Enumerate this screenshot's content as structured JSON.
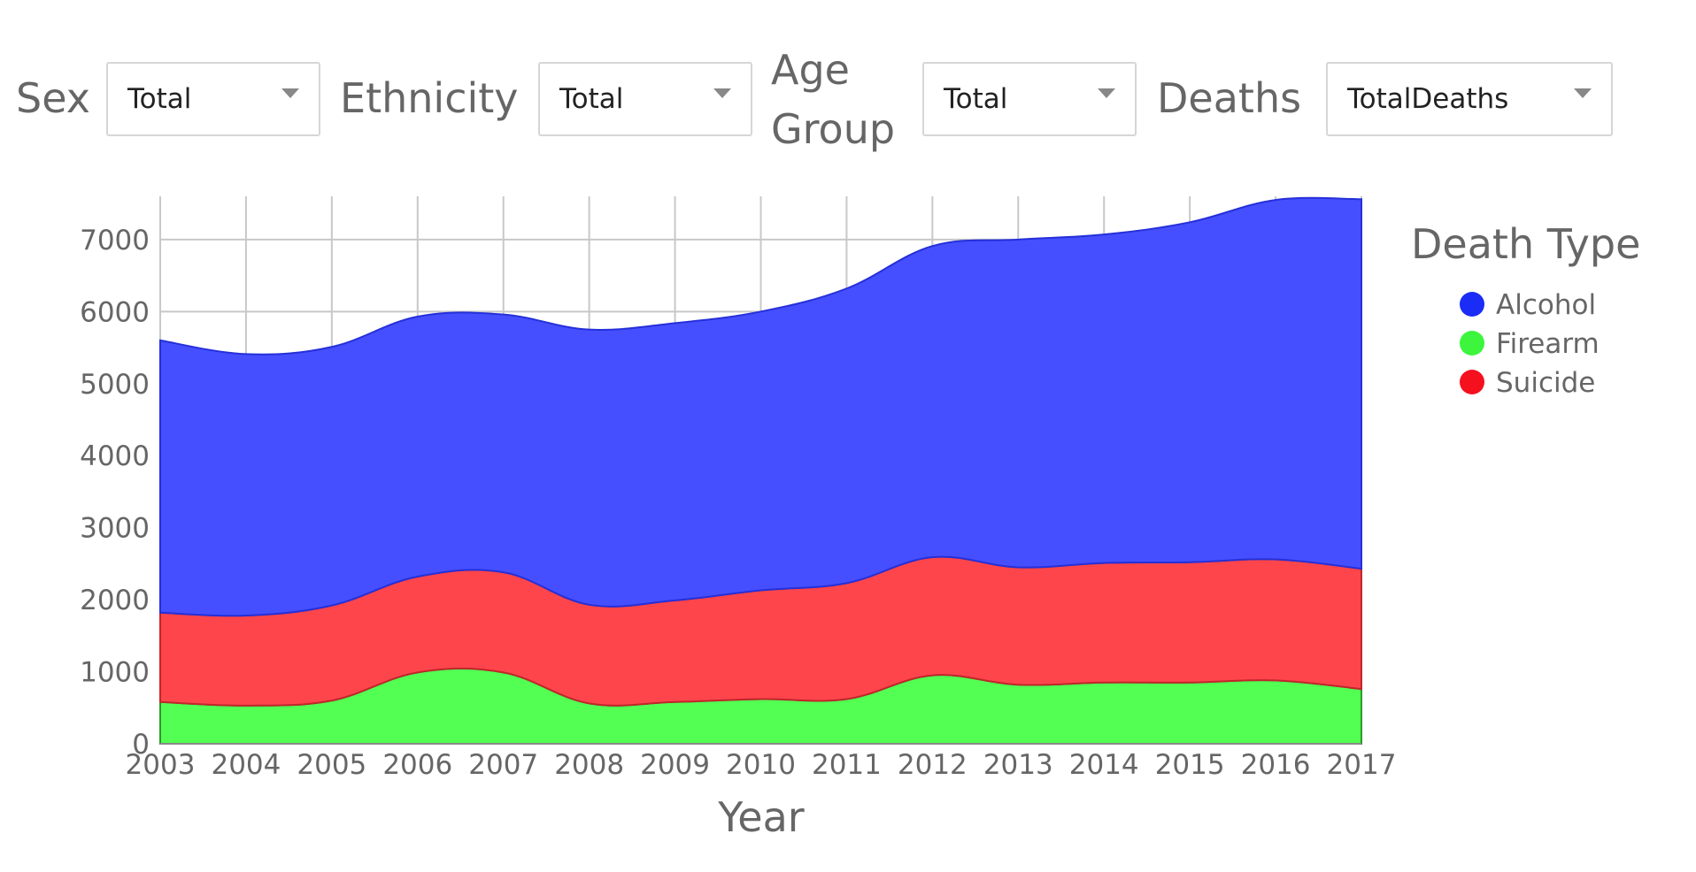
{
  "filters": [
    {
      "label": "Sex",
      "value": "Total"
    },
    {
      "label": "Ethnicity",
      "value": "Total"
    },
    {
      "label_lines": [
        "Age",
        "Group"
      ],
      "value": "Total"
    },
    {
      "label": "Deaths",
      "value": "TotalDeaths"
    }
  ],
  "chart_data": {
    "type": "area",
    "stacked": true,
    "x": [
      2003,
      2004,
      2005,
      2006,
      2007,
      2008,
      2009,
      2010,
      2011,
      2012,
      2013,
      2014,
      2015,
      2016,
      2017
    ],
    "series": [
      {
        "name": "Firearm",
        "color": "#52ff52",
        "values": [
          580,
          530,
          600,
          990,
          990,
          560,
          580,
          620,
          620,
          950,
          820,
          850,
          850,
          880,
          760
        ]
      },
      {
        "name": "Suicide",
        "color": "#ff454c",
        "values": [
          1240,
          1250,
          1320,
          1330,
          1390,
          1370,
          1410,
          1510,
          1610,
          1640,
          1630,
          1660,
          1670,
          1680,
          1670
        ]
      },
      {
        "name": "Alcohol",
        "color": "#454fff",
        "values": [
          3780,
          3630,
          3590,
          3610,
          3580,
          3820,
          3850,
          3870,
          4090,
          4320,
          4550,
          4560,
          4720,
          4990,
          5130
        ]
      }
    ],
    "title": "",
    "xlabel": "Year",
    "ylabel": "",
    "ylim": [
      0,
      7600
    ],
    "yticks": [
      0,
      1000,
      2000,
      3000,
      4000,
      5000,
      6000,
      7000
    ],
    "xticks": [
      "2003",
      "2004",
      "2005",
      "2006",
      "2007",
      "2008",
      "2009",
      "2010",
      "2011",
      "2012",
      "2013",
      "2014",
      "2015",
      "2016",
      "2017"
    ],
    "legend": {
      "title": "Death Type",
      "entries": [
        "Alcohol",
        "Firearm",
        "Suicide"
      ],
      "position": "right"
    },
    "grid": true
  }
}
